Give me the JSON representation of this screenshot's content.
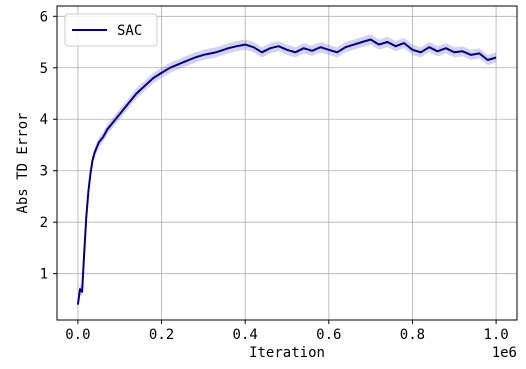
{
  "chart_data": {
    "type": "line",
    "title": "",
    "xlabel": "Iteration",
    "ylabel": "Abs TD Error",
    "x_offset_label": "1e6",
    "xlim": [
      -0.05,
      1.05
    ],
    "ylim": [
      0.1,
      6.2
    ],
    "x_ticks": [
      0.0,
      0.2,
      0.4,
      0.6,
      0.8,
      1.0
    ],
    "x_tick_labels": [
      "0.0",
      "0.2",
      "0.4",
      "0.6",
      "0.8",
      "1.0"
    ],
    "y_ticks": [
      1,
      2,
      3,
      4,
      5,
      6
    ],
    "y_tick_labels": [
      "1",
      "2",
      "3",
      "4",
      "5",
      "6"
    ],
    "grid": true,
    "legend_position": "top-left",
    "series": [
      {
        "name": "SAC",
        "color": "#00007f",
        "band_color": "#8080d0",
        "x": [
          0.0,
          0.005,
          0.01,
          0.015,
          0.02,
          0.025,
          0.03,
          0.035,
          0.04,
          0.05,
          0.06,
          0.07,
          0.08,
          0.09,
          0.1,
          0.12,
          0.14,
          0.16,
          0.18,
          0.2,
          0.22,
          0.25,
          0.28,
          0.3,
          0.33,
          0.36,
          0.38,
          0.4,
          0.42,
          0.44,
          0.46,
          0.48,
          0.5,
          0.52,
          0.54,
          0.56,
          0.58,
          0.6,
          0.62,
          0.64,
          0.66,
          0.68,
          0.7,
          0.72,
          0.74,
          0.76,
          0.78,
          0.8,
          0.82,
          0.84,
          0.86,
          0.88,
          0.9,
          0.92,
          0.94,
          0.96,
          0.98,
          1.0
        ],
        "y": [
          0.4,
          0.7,
          0.65,
          1.4,
          2.1,
          2.6,
          2.95,
          3.2,
          3.35,
          3.55,
          3.65,
          3.8,
          3.9,
          4.0,
          4.1,
          4.3,
          4.5,
          4.65,
          4.8,
          4.9,
          5.0,
          5.1,
          5.2,
          5.25,
          5.3,
          5.38,
          5.42,
          5.45,
          5.4,
          5.3,
          5.38,
          5.42,
          5.35,
          5.3,
          5.38,
          5.33,
          5.4,
          5.35,
          5.3,
          5.4,
          5.45,
          5.5,
          5.55,
          5.45,
          5.5,
          5.42,
          5.48,
          5.35,
          5.3,
          5.4,
          5.32,
          5.38,
          5.3,
          5.32,
          5.25,
          5.28,
          5.15,
          5.2
        ],
        "band": 0.1
      }
    ]
  }
}
